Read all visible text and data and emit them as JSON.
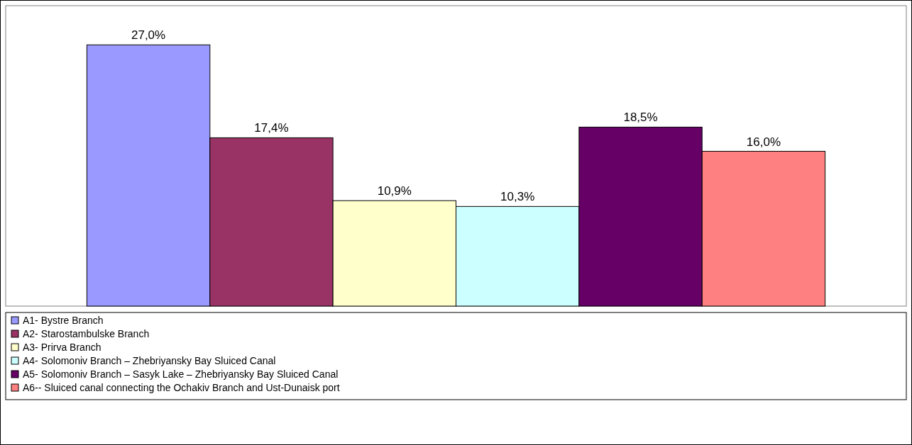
{
  "chart_data": {
    "type": "bar",
    "categories": [
      null
    ],
    "legend": "bottom",
    "series": [
      {
        "name": "A1- Bystre Branch",
        "color": "#9999ff",
        "values": [
          27.0
        ],
        "value_labels": [
          "27,0%"
        ]
      },
      {
        "name": "A2- Starostambulske Branch",
        "color": "#993366",
        "values": [
          17.4
        ],
        "value_labels": [
          "17,4%"
        ]
      },
      {
        "name": "A3- Prirva Branch",
        "color": "#ffffcc",
        "values": [
          10.9
        ],
        "value_labels": [
          "10,9%"
        ]
      },
      {
        "name": "A4- Solomoniv Branch – Zhebriyansky Bay Sluiced Canal",
        "color": "#ccffff",
        "values": [
          10.3
        ],
        "value_labels": [
          "10,3%"
        ]
      },
      {
        "name": "A5- Solomoniv Branch – Sasyk Lake – Zhebriyansky Bay Sluiced Canal",
        "color": "#660066",
        "values": [
          18.5
        ],
        "value_labels": [
          "18,5%"
        ]
      },
      {
        "name": "A6-- Sluiced canal connecting the Ochakiv Branch and Ust-Dunaisk port",
        "color": "#ff8080",
        "values": [
          16.0
        ],
        "value_labels": [
          "16,0%"
        ]
      }
    ]
  }
}
